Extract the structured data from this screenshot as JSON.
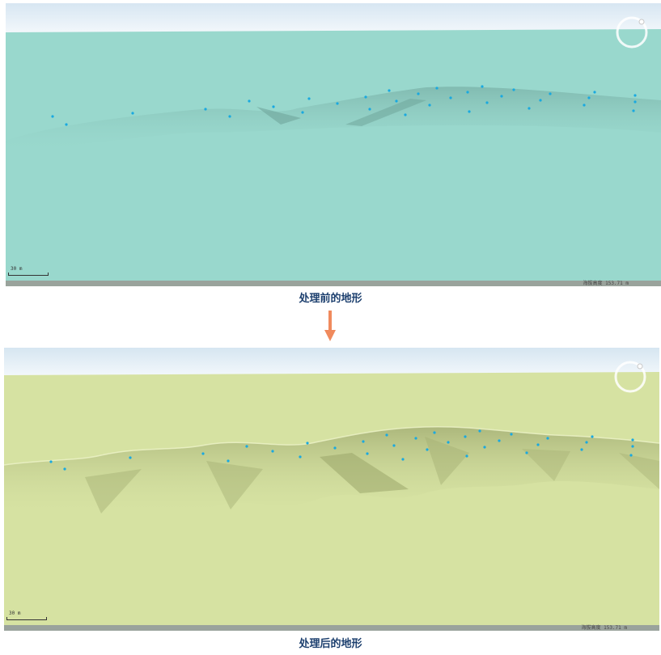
{
  "views": {
    "before": {
      "scale_label": "30 m",
      "coord_readout": "海拔高度 153.71 m",
      "caption": "处理前的地形",
      "ground_color": "#99d8cd"
    },
    "after": {
      "scale_label": "30 m",
      "coord_readout": "海拔高度 153.71 m",
      "caption": "处理后的地形",
      "ground_color": "#d6e2a2"
    }
  },
  "arrow_color": "#f08a5d",
  "icons": {
    "navigation": "compass-ring-icon",
    "flow": "down-arrow-icon"
  }
}
